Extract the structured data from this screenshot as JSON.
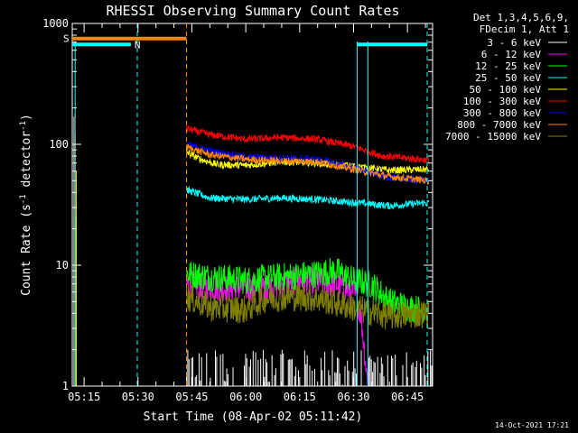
{
  "chart_data": {
    "type": "line",
    "title": "RHESSI Observing Summary Count Rates",
    "xlabel": "Start Time (08-Apr-02 05:11:42)",
    "ylabel_main": "Count Rate (s",
    "ylabel_sup1": "-1",
    "ylabel_mid": " detector",
    "ylabel_sup2": "-1",
    "ylabel_end": ")",
    "y_scale": "log",
    "ylim": [
      1,
      1000
    ],
    "x_start_min": 311.7,
    "x_end_min": 412,
    "x_ticks": [
      {
        "t": 315,
        "label": "05:15"
      },
      {
        "t": 330,
        "label": "05:30"
      },
      {
        "t": 345,
        "label": "05:45"
      },
      {
        "t": 360,
        "label": "06:00"
      },
      {
        "t": 375,
        "label": "06:15"
      },
      {
        "t": 390,
        "label": "06:30"
      },
      {
        "t": 405,
        "label": "06:45"
      }
    ],
    "y_ticks": [
      {
        "v": 1,
        "label": "1"
      },
      {
        "v": 10,
        "label": "10"
      },
      {
        "v": 100,
        "label": "100"
      },
      {
        "v": 1000,
        "label": "1000"
      }
    ],
    "legend_header": [
      "Det 1,3,4,5,6,9,",
      "FDecim 1, Att 1"
    ],
    "legend_position": "right",
    "series": [
      {
        "name": "3 - 6 keV",
        "color": "#ffffff",
        "style": "bursty",
        "t_range": [
          343.5,
          412
        ],
        "level": 1.6
      },
      {
        "name": "6 - 12 keV",
        "color": "#ff00ff",
        "points": [
          [
            343.5,
            7
          ],
          [
            355,
            6.5
          ],
          [
            365,
            6.5
          ],
          [
            375,
            7.5
          ],
          [
            385,
            7
          ],
          [
            390,
            6
          ],
          [
            392,
            4
          ],
          [
            394,
            1
          ]
        ]
      },
      {
        "name": "12 - 25 keV",
        "color": "#00ff00",
        "points": [
          [
            343.5,
            8.5
          ],
          [
            350,
            8
          ],
          [
            360,
            7.5
          ],
          [
            370,
            8
          ],
          [
            380,
            8.5
          ],
          [
            385,
            9
          ],
          [
            390,
            7.5
          ],
          [
            395,
            7
          ],
          [
            400,
            5
          ],
          [
            405,
            4.5
          ],
          [
            410,
            4.2
          ]
        ]
      },
      {
        "name": "25 - 50 keV",
        "color": "#00ffff",
        "points": [
          [
            343.5,
            42
          ],
          [
            350,
            36
          ],
          [
            360,
            35
          ],
          [
            370,
            36
          ],
          [
            380,
            35
          ],
          [
            390,
            33
          ],
          [
            400,
            31
          ],
          [
            411,
            33
          ]
        ]
      },
      {
        "name": "50 - 100 keV",
        "color": "#ffff00",
        "points": [
          [
            343.5,
            86
          ],
          [
            347,
            76
          ],
          [
            352,
            68
          ],
          [
            360,
            67
          ],
          [
            370,
            72
          ],
          [
            380,
            70
          ],
          [
            390,
            66
          ],
          [
            400,
            61
          ],
          [
            411,
            62
          ]
        ]
      },
      {
        "name": "100 - 300 keV",
        "color": "#ff0000",
        "points": [
          [
            343.5,
            135
          ],
          [
            350,
            120
          ],
          [
            360,
            110
          ],
          [
            370,
            114
          ],
          [
            380,
            110
          ],
          [
            390,
            96
          ],
          [
            398,
            80
          ],
          [
            411,
            74
          ]
        ]
      },
      {
        "name": "300 - 800 keV",
        "color": "#0000ff",
        "points": [
          [
            343.5,
            100
          ],
          [
            350,
            88
          ],
          [
            360,
            78
          ],
          [
            370,
            77
          ],
          [
            380,
            75
          ],
          [
            390,
            64
          ],
          [
            400,
            53
          ],
          [
            411,
            50
          ]
        ]
      },
      {
        "name": "800 - 7000 keV",
        "color": "#ff8800",
        "points": [
          [
            343.5,
            95
          ],
          [
            350,
            82
          ],
          [
            360,
            75
          ],
          [
            370,
            73
          ],
          [
            380,
            72
          ],
          [
            390,
            62
          ],
          [
            400,
            54
          ],
          [
            411,
            50
          ]
        ]
      },
      {
        "name": "7000 - 15000 keV",
        "color": "#808000",
        "points": [
          [
            343.5,
            5.5
          ],
          [
            350,
            4.5
          ],
          [
            360,
            4.3
          ],
          [
            365,
            5.3
          ],
          [
            372,
            5.5
          ],
          [
            380,
            5.3
          ],
          [
            386,
            4.8
          ],
          [
            392,
            4.3
          ],
          [
            400,
            3.8
          ],
          [
            411,
            4
          ]
        ]
      }
    ],
    "flags": [
      {
        "label": "S",
        "color": "#ff8800",
        "t_range": [
          311.7,
          343.5
        ],
        "level": 750
      },
      {
        "label": "N",
        "color": "#00ffff",
        "t_range": [
          311.7,
          328
        ],
        "level": 670
      },
      {
        "label": "",
        "color": "#00ffff",
        "t_range": [
          391,
          410.5
        ],
        "level": 670
      }
    ]
  },
  "footer": {
    "stamp": "14-Oct-2021 17:21"
  }
}
